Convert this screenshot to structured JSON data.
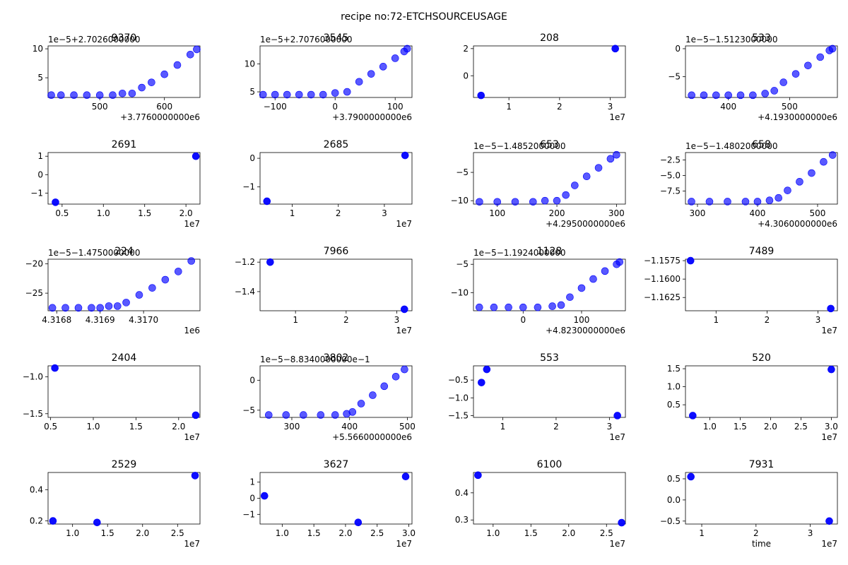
{
  "figure": {
    "suptitle": "recipe no:72-ETCHSOURCEUSAGE",
    "marker_color": "#0000ff",
    "axes_color": "#000000",
    "background": "#ffffff"
  },
  "chart_data": [
    {
      "type": "scatter",
      "title": "9370",
      "xticks": [
        "500",
        "600"
      ],
      "yticks": [
        "5",
        "10"
      ],
      "offset_x": "+3.7760000000e6",
      "offset_y": "1e−5+2.7026000000",
      "xlabel": "",
      "ylabel": "",
      "xlim": [
        420,
        655
      ],
      "ylim": [
        1.6,
        10.5
      ],
      "x": [
        425,
        440,
        460,
        480,
        500,
        520,
        535,
        550,
        565,
        580,
        600,
        620,
        640,
        650
      ],
      "y": [
        2,
        2,
        2,
        2,
        2,
        2,
        2.3,
        2.3,
        3.3,
        4.2,
        5.6,
        7.2,
        9.0,
        9.9
      ]
    },
    {
      "type": "scatter",
      "title": "3545",
      "xticks": [
        "−100",
        "0",
        "100"
      ],
      "yticks": [
        "5",
        "10"
      ],
      "offset_x": "+3.7900000000e6",
      "offset_y": "1e−5+2.7076000000",
      "xlabel": "",
      "ylabel": "",
      "xlim": [
        -125,
        128
      ],
      "ylim": [
        4.0,
        13.2
      ],
      "x": [
        -120,
        -100,
        -80,
        -60,
        -40,
        -20,
        0,
        20,
        40,
        60,
        80,
        100,
        115,
        120
      ],
      "y": [
        4.5,
        4.5,
        4.5,
        4.5,
        4.5,
        4.5,
        4.8,
        5.0,
        6.8,
        8.2,
        9.5,
        11.0,
        12.2,
        12.7
      ]
    },
    {
      "type": "scatter",
      "title": "208",
      "xticks": [
        "1",
        "2",
        "3"
      ],
      "yticks": [
        "0",
        "2"
      ],
      "offset_x": "1e7",
      "offset_y": "",
      "xlabel": "",
      "ylabel": "",
      "xlim": [
        0.3,
        3.3
      ],
      "ylim": [
        -1.6,
        2.2
      ],
      "x": [
        0.45,
        3.1
      ],
      "y": [
        -1.45,
        2.0
      ]
    },
    {
      "type": "scatter",
      "title": "533",
      "xticks": [
        "400",
        "500"
      ],
      "yticks": [
        "−5",
        "0"
      ],
      "offset_x": "+4.1930000000e6",
      "offset_y": "1e−5−1.5123000000",
      "xlabel": "",
      "ylabel": "",
      "xlim": [
        330,
        578
      ],
      "ylim": [
        -8.7,
        0.5
      ],
      "x": [
        340,
        360,
        380,
        400,
        420,
        440,
        460,
        475,
        490,
        510,
        530,
        550,
        565,
        570
      ],
      "y": [
        -8.3,
        -8.3,
        -8.3,
        -8.3,
        -8.3,
        -8.3,
        -8.0,
        -7.5,
        -6.0,
        -4.5,
        -3.0,
        -1.5,
        -0.3,
        0.0
      ]
    },
    {
      "type": "scatter",
      "title": "2691",
      "xticks": [
        "0.5",
        "1.0",
        "1.5",
        "2.0"
      ],
      "yticks": [
        "−1",
        "0",
        "1"
      ],
      "offset_x": "1e7",
      "offset_y": "",
      "xlabel": "",
      "ylabel": "",
      "xlim": [
        0.33,
        2.17
      ],
      "ylim": [
        -1.6,
        1.2
      ],
      "x": [
        0.42,
        2.12
      ],
      "y": [
        -1.5,
        1.0
      ]
    },
    {
      "type": "scatter",
      "title": "2685",
      "xticks": [
        "1",
        "2",
        "3"
      ],
      "yticks": [
        "−1",
        "0"
      ],
      "offset_x": "1e7",
      "offset_y": "",
      "xlabel": "",
      "ylabel": "",
      "xlim": [
        0.3,
        3.6
      ],
      "ylim": [
        -1.6,
        0.2
      ],
      "x": [
        0.45,
        3.45
      ],
      "y": [
        -1.5,
        0.1
      ]
    },
    {
      "type": "scatter",
      "title": "653",
      "xticks": [
        "100",
        "200",
        "300"
      ],
      "yticks": [
        "−10",
        "−5"
      ],
      "offset_x": "+4.2950000000e6",
      "offset_y": "1e−5−1.4852000000",
      "xlabel": "",
      "ylabel": "",
      "xlim": [
        60,
        315
      ],
      "ylim": [
        -10.6,
        -1.5
      ],
      "x": [
        70,
        100,
        130,
        160,
        180,
        200,
        215,
        230,
        250,
        270,
        290,
        300
      ],
      "y": [
        -10.2,
        -10.2,
        -10.2,
        -10.2,
        -10,
        -10,
        -9.0,
        -7.3,
        -5.7,
        -4.2,
        -2.6,
        -1.9
      ]
    },
    {
      "type": "scatter",
      "title": "658",
      "xticks": [
        "300",
        "400",
        "500"
      ],
      "yticks": [
        "−7.5",
        "−5.0",
        "−2.5"
      ],
      "offset_x": "+4.3060000000e6",
      "offset_y": "1e−5−1.4802000000",
      "xlabel": "",
      "ylabel": "",
      "xlim": [
        280,
        533
      ],
      "ylim": [
        -9.6,
        -1.3
      ],
      "x": [
        290,
        320,
        350,
        380,
        400,
        420,
        435,
        450,
        470,
        490,
        510,
        525
      ],
      "y": [
        -9.2,
        -9.2,
        -9.2,
        -9.2,
        -9.2,
        -9.0,
        -8.6,
        -7.4,
        -6.0,
        -4.6,
        -2.8,
        -1.7
      ]
    },
    {
      "type": "scatter",
      "title": "224",
      "xticks": [
        "4.3168",
        "4.3169",
        "4.3170"
      ],
      "yticks": [
        "−25",
        "−20"
      ],
      "offset_x": "1e6",
      "offset_y": "1e−5−1.4750000000",
      "xlabel": "",
      "ylabel": "",
      "xlim": [
        4.31678,
        4.31713
      ],
      "ylim": [
        -28.0,
        -19.2
      ],
      "x": [
        4.31679,
        4.31682,
        4.31685,
        4.31688,
        4.3169,
        4.31692,
        4.31694,
        4.31696,
        4.31699,
        4.31702,
        4.31705,
        4.31708,
        4.31711
      ],
      "y": [
        -27.5,
        -27.5,
        -27.5,
        -27.5,
        -27.5,
        -27.2,
        -27.2,
        -26.6,
        -25.3,
        -24.1,
        -22.7,
        -21.3,
        -19.5
      ]
    },
    {
      "type": "scatter",
      "title": "7966",
      "xticks": [
        "1",
        "2",
        "3"
      ],
      "yticks": [
        "−1.4",
        "−1.2"
      ],
      "offset_x": "1e7",
      "offset_y": "",
      "xlabel": "",
      "ylabel": "",
      "xlim": [
        0.3,
        3.3
      ],
      "ylim": [
        -1.53,
        -1.18
      ],
      "x": [
        0.5,
        3.15
      ],
      "y": [
        -1.2,
        -1.52
      ]
    },
    {
      "type": "scatter",
      "title": "1128",
      "xticks": [
        "0",
        "100"
      ],
      "yticks": [
        "−10",
        "−5"
      ],
      "offset_x": "+4.8230000000e6",
      "offset_y": "1e−5−1.1924000000",
      "xlabel": "",
      "ylabel": "",
      "xlim": [
        -85,
        175
      ],
      "ylim": [
        -13.2,
        -4.1
      ],
      "x": [
        -75,
        -50,
        -25,
        0,
        25,
        50,
        65,
        80,
        100,
        120,
        140,
        160,
        165
      ],
      "y": [
        -12.6,
        -12.6,
        -12.6,
        -12.6,
        -12.6,
        -12.4,
        -12.2,
        -10.8,
        -9.2,
        -7.6,
        -6.2,
        -5,
        -4.6
      ]
    },
    {
      "type": "scatter",
      "title": "7489",
      "xticks": [
        "1",
        "2",
        "3"
      ],
      "yticks": [
        "−1.1625",
        "−1.1600",
        "−1.1575"
      ],
      "offset_x": "1e7",
      "offset_y": "",
      "xlabel": "",
      "ylabel": "",
      "xlim": [
        0.4,
        3.38
      ],
      "ylim": [
        -1.1643,
        -1.1573
      ],
      "x": [
        0.5,
        3.25
      ],
      "y": [
        -1.1575,
        -1.164
      ]
    },
    {
      "type": "scatter",
      "title": "2404",
      "xticks": [
        "0.5",
        "1.0",
        "1.5",
        "2.0"
      ],
      "yticks": [
        "−1.5",
        "−1.0"
      ],
      "offset_x": "1e7",
      "offset_y": "",
      "xlabel": "",
      "ylabel": "",
      "xlim": [
        0.47,
        2.25
      ],
      "ylim": [
        -1.55,
        -0.85
      ],
      "x": [
        0.55,
        2.2
      ],
      "y": [
        -0.88,
        -1.52
      ]
    },
    {
      "type": "scatter",
      "title": "3802",
      "xticks": [
        "300",
        "400",
        "500"
      ],
      "yticks": [
        "−5",
        "0"
      ],
      "offset_x": "+5.5660000000e6",
      "offset_y": "1e−5−8.8340000000e−1",
      "xlabel": "",
      "ylabel": "",
      "xlim": [
        245,
        508
      ],
      "ylim": [
        -6.2,
        2.4
      ],
      "x": [
        260,
        290,
        320,
        350,
        375,
        395,
        405,
        420,
        440,
        460,
        480,
        495
      ],
      "y": [
        -5.8,
        -5.8,
        -5.8,
        -5.8,
        -5.8,
        -5.6,
        -5.3,
        -3.9,
        -2.5,
        -1.0,
        0.6,
        1.8
      ]
    },
    {
      "type": "scatter",
      "title": "553",
      "xticks": [
        "1",
        "2",
        "3"
      ],
      "yticks": [
        "−1.5",
        "−1.0",
        "−0.5"
      ],
      "offset_x": "1e7",
      "offset_y": "",
      "xlabel": "",
      "ylabel": "",
      "xlim": [
        0.45,
        3.3
      ],
      "ylim": [
        -1.55,
        -0.1
      ],
      "x": [
        0.6,
        0.7,
        3.15
      ],
      "y": [
        -0.57,
        -0.2,
        -1.5
      ]
    },
    {
      "type": "scatter",
      "title": "520",
      "xticks": [
        "1.0",
        "1.5",
        "2.0",
        "2.5",
        "3.0"
      ],
      "yticks": [
        "0.5",
        "1.0",
        "1.5"
      ],
      "offset_x": "1e7",
      "offset_y": "",
      "xlabel": "",
      "ylabel": "",
      "xlim": [
        0.6,
        3.1
      ],
      "ylim": [
        0.15,
        1.58
      ],
      "x": [
        0.72,
        3.0
      ],
      "y": [
        0.2,
        1.48
      ]
    },
    {
      "type": "scatter",
      "title": "2529",
      "xticks": [
        "1.0",
        "1.5",
        "2.0",
        "2.5"
      ],
      "yticks": [
        "0.2",
        "0.4"
      ],
      "offset_x": "1e7",
      "offset_y": "",
      "xlabel": "",
      "ylabel": "",
      "xlim": [
        0.65,
        2.82
      ],
      "ylim": [
        0.18,
        0.51
      ],
      "x": [
        0.72,
        1.35,
        2.75
      ],
      "y": [
        0.2,
        0.19,
        0.49
      ]
    },
    {
      "type": "scatter",
      "title": "3627",
      "xticks": [
        "1.0",
        "1.5",
        "2.0",
        "2.5",
        "3.0"
      ],
      "yticks": [
        "−1",
        "0",
        "1"
      ],
      "offset_x": "1e7",
      "offset_y": "",
      "xlabel": "",
      "ylabel": "",
      "xlim": [
        0.65,
        3.05
      ],
      "ylim": [
        -1.6,
        1.6
      ],
      "x": [
        0.72,
        2.2,
        2.95
      ],
      "y": [
        0.15,
        -1.5,
        1.35
      ]
    },
    {
      "type": "scatter",
      "title": "6100",
      "xticks": [
        "1.0",
        "1.5",
        "2.0",
        "2.5"
      ],
      "yticks": [
        "0.3",
        "0.4"
      ],
      "offset_x": "1e7",
      "offset_y": "",
      "xlabel": "",
      "ylabel": "",
      "xlim": [
        0.74,
        2.75
      ],
      "ylim": [
        0.285,
        0.475
      ],
      "x": [
        0.8,
        2.7
      ],
      "y": [
        0.465,
        0.29
      ]
    },
    {
      "type": "scatter",
      "title": "7931",
      "xticks": [
        "1",
        "2",
        "3"
      ],
      "yticks": [
        "−0.5",
        "0.0",
        "0.5"
      ],
      "offset_x": "1e7",
      "offset_y": "",
      "xlabel": "time",
      "ylabel": "",
      "xlim": [
        0.7,
        3.5
      ],
      "ylim": [
        -0.57,
        0.65
      ],
      "x": [
        0.8,
        3.35
      ],
      "y": [
        0.55,
        -0.5
      ]
    }
  ]
}
